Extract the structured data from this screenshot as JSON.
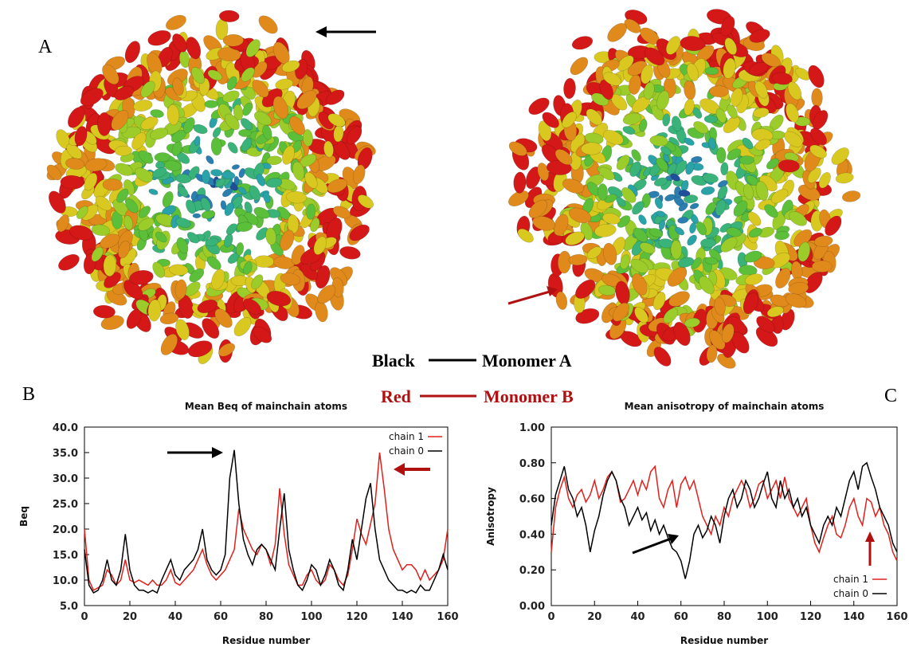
{
  "figure": {
    "panel_labels": [
      "A",
      "B",
      "C"
    ],
    "key": [
      {
        "label": "Black",
        "text": "Monomer A",
        "color": "#000000"
      },
      {
        "label": "Red",
        "text": "Monomer B",
        "color": "#b01010"
      }
    ]
  },
  "chart_data": [
    {
      "type": "line",
      "title": "Mean Beq of mainchain atoms",
      "x_label": "Residue number",
      "y_label": "Beq",
      "legend": "top-right",
      "xlim": [
        0,
        160
      ],
      "xticks": [
        0,
        20,
        40,
        60,
        80,
        100,
        120,
        140,
        160
      ],
      "ylim": [
        5,
        40
      ],
      "yticks": [
        {
          "value": 5,
          "label": "5.0"
        },
        {
          "value": 10,
          "label": "10.0"
        },
        {
          "value": 15,
          "label": "15.0"
        },
        {
          "value": 20,
          "label": "20.0"
        },
        {
          "value": 25,
          "label": "25.0"
        },
        {
          "value": 30,
          "label": "30.0"
        },
        {
          "value": 35,
          "label": "35.0"
        },
        {
          "value": 40,
          "label": "40.0"
        }
      ],
      "x": [
        0,
        2,
        4,
        6,
        8,
        10,
        12,
        14,
        16,
        18,
        20,
        22,
        24,
        26,
        28,
        30,
        32,
        34,
        36,
        38,
        40,
        42,
        44,
        46,
        48,
        50,
        52,
        54,
        56,
        58,
        60,
        62,
        64,
        66,
        68,
        70,
        72,
        74,
        76,
        78,
        80,
        82,
        84,
        86,
        88,
        90,
        92,
        94,
        96,
        98,
        100,
        102,
        104,
        106,
        108,
        110,
        112,
        114,
        116,
        118,
        120,
        122,
        124,
        126,
        128,
        130,
        132,
        134,
        136,
        138,
        140,
        142,
        144,
        146,
        148,
        150,
        152,
        154,
        156,
        158,
        160
      ],
      "series": [
        {
          "name": "chain 1",
          "color": "#e0201c",
          "values": [
            20,
            10,
            8,
            8.5,
            9,
            12,
            11,
            9,
            10,
            14,
            10,
            9.5,
            10,
            9.5,
            9,
            10,
            9,
            9,
            10,
            12,
            9.5,
            9,
            10,
            11,
            12,
            14,
            16,
            13,
            11,
            10,
            11,
            12,
            14,
            16,
            24,
            20,
            18,
            16,
            15,
            17,
            16,
            13,
            17,
            28,
            19,
            13,
            11,
            9,
            9,
            11,
            12,
            10,
            9,
            10,
            13,
            12,
            10,
            9,
            11,
            16,
            22,
            19,
            17,
            21,
            25,
            35,
            28,
            20,
            16,
            14,
            12,
            13,
            13,
            12,
            10,
            12,
            10,
            11,
            12,
            14,
            20
          ]
        },
        {
          "name": "chain 0",
          "color": "#000000",
          "values": [
            16,
            9,
            7.5,
            8,
            10,
            14,
            10,
            9,
            12,
            19,
            12,
            9,
            8,
            8,
            7.5,
            8,
            7.5,
            10,
            12,
            14,
            11,
            10,
            12,
            13,
            14,
            16,
            20,
            14,
            12,
            11,
            12,
            15,
            30,
            35.5,
            25,
            18,
            15,
            13,
            16,
            17,
            16,
            14,
            12,
            20,
            27,
            16,
            12,
            9,
            8,
            10,
            13,
            12,
            9,
            11,
            14,
            12,
            9,
            8,
            12,
            18,
            14,
            20,
            26,
            29,
            20,
            14,
            12,
            10,
            9,
            8,
            8,
            7.5,
            8,
            7.5,
            9,
            8,
            8,
            10,
            12,
            15,
            12
          ]
        }
      ]
    },
    {
      "type": "line",
      "title": "Mean anisotropy of mainchain atoms",
      "x_label": "Residue number",
      "y_label": "Anisotropy",
      "legend": "bottom-right",
      "xlim": [
        0,
        160
      ],
      "xticks": [
        0,
        20,
        40,
        60,
        80,
        100,
        120,
        140,
        160
      ],
      "ylim": [
        0,
        1
      ],
      "yticks": [
        {
          "value": 0,
          "label": "0.00"
        },
        {
          "value": 0.2,
          "label": "0.20"
        },
        {
          "value": 0.4,
          "label": "0.40"
        },
        {
          "value": 0.6,
          "label": "0.60"
        },
        {
          "value": 0.8,
          "label": "0.80"
        },
        {
          "value": 1,
          "label": "1.00"
        }
      ],
      "x": [
        0,
        2,
        4,
        6,
        8,
        10,
        12,
        14,
        16,
        18,
        20,
        22,
        24,
        26,
        28,
        30,
        32,
        34,
        36,
        38,
        40,
        42,
        44,
        46,
        48,
        50,
        52,
        54,
        56,
        58,
        60,
        62,
        64,
        66,
        68,
        70,
        72,
        74,
        76,
        78,
        80,
        82,
        84,
        86,
        88,
        90,
        92,
        94,
        96,
        98,
        100,
        102,
        104,
        106,
        108,
        110,
        112,
        114,
        116,
        118,
        120,
        122,
        124,
        126,
        128,
        130,
        132,
        134,
        136,
        138,
        140,
        142,
        144,
        146,
        148,
        150,
        152,
        154,
        156,
        158,
        160
      ],
      "series": [
        {
          "name": "chain 1",
          "color": "#e0201c",
          "values": [
            0.3,
            0.55,
            0.65,
            0.72,
            0.6,
            0.55,
            0.62,
            0.65,
            0.58,
            0.62,
            0.7,
            0.6,
            0.65,
            0.72,
            0.75,
            0.7,
            0.58,
            0.6,
            0.65,
            0.7,
            0.62,
            0.7,
            0.65,
            0.75,
            0.78,
            0.6,
            0.55,
            0.65,
            0.7,
            0.55,
            0.68,
            0.72,
            0.65,
            0.7,
            0.6,
            0.5,
            0.45,
            0.4,
            0.5,
            0.45,
            0.55,
            0.5,
            0.6,
            0.65,
            0.7,
            0.65,
            0.55,
            0.6,
            0.68,
            0.7,
            0.6,
            0.65,
            0.7,
            0.6,
            0.72,
            0.6,
            0.55,
            0.5,
            0.55,
            0.6,
            0.45,
            0.35,
            0.3,
            0.38,
            0.45,
            0.5,
            0.4,
            0.38,
            0.45,
            0.55,
            0.6,
            0.5,
            0.45,
            0.6,
            0.58,
            0.5,
            0.55,
            0.45,
            0.4,
            0.3,
            0.25
          ]
        },
        {
          "name": "chain 0",
          "color": "#000000",
          "values": [
            0.45,
            0.62,
            0.7,
            0.78,
            0.65,
            0.6,
            0.5,
            0.55,
            0.45,
            0.3,
            0.42,
            0.5,
            0.62,
            0.7,
            0.75,
            0.7,
            0.6,
            0.55,
            0.45,
            0.5,
            0.55,
            0.48,
            0.52,
            0.42,
            0.48,
            0.4,
            0.45,
            0.38,
            0.32,
            0.3,
            0.25,
            0.15,
            0.25,
            0.4,
            0.45,
            0.38,
            0.42,
            0.5,
            0.45,
            0.35,
            0.5,
            0.6,
            0.65,
            0.55,
            0.6,
            0.7,
            0.65,
            0.55,
            0.6,
            0.68,
            0.75,
            0.6,
            0.55,
            0.7,
            0.6,
            0.65,
            0.55,
            0.6,
            0.5,
            0.55,
            0.45,
            0.4,
            0.35,
            0.45,
            0.5,
            0.45,
            0.55,
            0.5,
            0.6,
            0.7,
            0.75,
            0.65,
            0.78,
            0.8,
            0.72,
            0.65,
            0.55,
            0.5,
            0.45,
            0.35,
            0.3
          ]
        }
      ]
    }
  ]
}
